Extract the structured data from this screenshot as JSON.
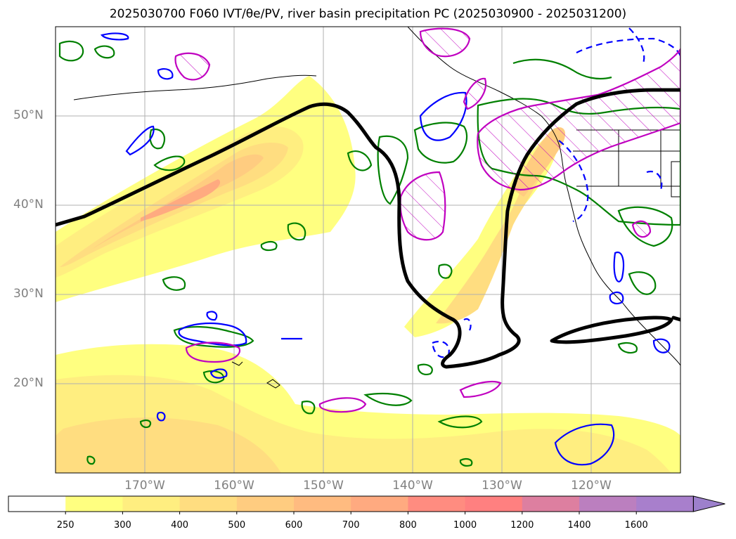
{
  "title": "2025030700 F060 IVT/θe/PV, river basin precipitation PC (2025030900 - 2025031200)",
  "map": {
    "lat_labels": [
      {
        "lat": 50,
        "label": "50°N"
      },
      {
        "lat": 40,
        "label": "40°N"
      },
      {
        "lat": 30,
        "label": "30°N"
      },
      {
        "lat": 20,
        "label": "20°N"
      }
    ],
    "lon_labels": [
      {
        "lon": -170,
        "label": "170°W"
      },
      {
        "lon": -160,
        "label": "160°W"
      },
      {
        "lon": -150,
        "label": "150°W"
      },
      {
        "lon": -140,
        "label": "140°W"
      },
      {
        "lon": -130,
        "label": "130°W"
      },
      {
        "lon": -120,
        "label": "120°W"
      }
    ],
    "extent": {
      "lon_min": -180,
      "lon_max": -110,
      "lat_min": 10,
      "lat_max": 60
    },
    "fields": {
      "ivt": "filled yellow-orange-red shading",
      "theta_e": "green contours",
      "pv_positive": "blue solid contours",
      "pv_negative": "blue dashed contours",
      "precip_pc": "magenta contours with hatching",
      "jet_axis": "thick black line"
    },
    "colors": {
      "ivt_250": "#ffff80",
      "ivt_300": "#ffee80",
      "ivt_400": "#ffdd80",
      "theta_e": "#008000",
      "pv": "#0000ff",
      "precip": "#c000c0",
      "jet": "#000000",
      "grid": "#b0b0b0"
    }
  },
  "colorbar": {
    "ticks": [
      "250",
      "300",
      "400",
      "500",
      "600",
      "700",
      "800",
      "1000",
      "1200",
      "1400",
      "1600"
    ],
    "colors": [
      "#ffffff",
      "#ffff80",
      "#ffee80",
      "#ffdd80",
      "#ffcc80",
      "#ffbb80",
      "#ffaa80",
      "#ff8c80",
      "#ff8080",
      "#dd7fa0",
      "#bb7fbf",
      "#a87fcc",
      "#9d80cc"
    ]
  }
}
